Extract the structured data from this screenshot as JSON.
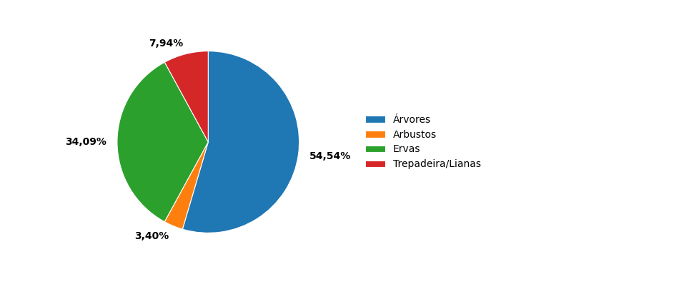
{
  "chart_data": {
    "type": "pie",
    "categories": [
      "Árvores",
      "Arbustos",
      "Ervas",
      "Trepadeira/Lianas"
    ],
    "values": [
      54.54,
      3.4,
      34.09,
      7.94
    ],
    "value_labels": [
      "54,54%",
      "3,40%",
      "34,09%",
      "7,94%"
    ],
    "data_labels": true,
    "legend": "center left"
  }
}
